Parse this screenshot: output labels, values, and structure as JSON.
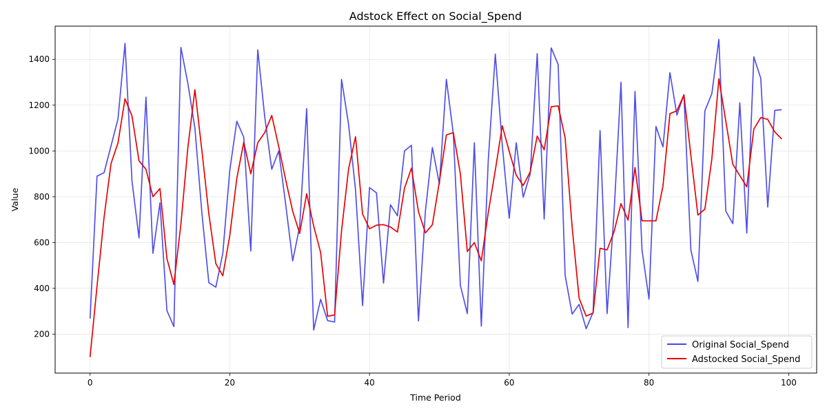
{
  "chart_data": {
    "type": "line",
    "title": "Adstock Effect on Social_Spend",
    "xlabel": "Time Period",
    "ylabel": "Value",
    "xlim": [
      -5,
      104
    ],
    "ylim": [
      30,
      1545
    ],
    "xticks": [
      0,
      20,
      40,
      60,
      80,
      100
    ],
    "yticks": [
      200,
      400,
      600,
      800,
      1000,
      1200,
      1400
    ],
    "grid": true,
    "legend_position": "lower-right",
    "x": [
      0,
      1,
      2,
      3,
      4,
      5,
      6,
      7,
      8,
      9,
      10,
      11,
      12,
      13,
      14,
      15,
      16,
      17,
      18,
      19,
      20,
      21,
      22,
      23,
      24,
      25,
      26,
      27,
      28,
      29,
      30,
      31,
      32,
      33,
      34,
      35,
      36,
      37,
      38,
      39,
      40,
      41,
      42,
      43,
      44,
      45,
      46,
      47,
      48,
      49,
      50,
      51,
      52,
      53,
      54,
      55,
      56,
      57,
      58,
      59,
      60,
      61,
      62,
      63,
      64,
      65,
      66,
      67,
      68,
      69,
      70,
      71,
      72,
      73,
      74,
      75,
      76,
      77,
      78,
      79,
      80,
      81,
      82,
      83,
      84,
      85,
      86,
      87,
      88,
      89,
      90,
      91,
      92,
      93,
      94,
      95,
      96,
      97,
      98,
      99
    ],
    "series": [
      {
        "name": "Original Social_Spend",
        "color": "#4646e8",
        "values": [
          268,
          890,
          905,
          1022,
          1140,
          1470,
          870,
          620,
          1235,
          553,
          773,
          303,
          233,
          1452,
          1295,
          1100,
          730,
          425,
          405,
          553,
          915,
          1130,
          1060,
          563,
          1442,
          1150,
          920,
          1000,
          768,
          520,
          670,
          1185,
          218,
          352,
          259,
          253,
          1313,
          1116,
          829,
          325,
          840,
          817,
          423,
          765,
          717,
          1000,
          1025,
          258,
          738,
          1015,
          855,
          1313,
          1075,
          413,
          290,
          1036,
          235,
          960,
          1423,
          1026,
          706,
          1036,
          798,
          900,
          1425,
          702,
          1450,
          1378,
          457,
          288,
          330,
          224,
          295,
          1089,
          290,
          730,
          1300,
          229,
          1260,
          567,
          353,
          1107,
          1018,
          1342,
          1157,
          1245,
          567,
          430,
          1175,
          1250,
          1487,
          737,
          683,
          1210,
          641,
          1411,
          1317,
          755,
          1177,
          1180
        ]
      },
      {
        "name": "Adstocked Social_Spend",
        "color": "#e80000",
        "values": [
          100,
          410,
          710,
          945,
          1035,
          1228,
          1153,
          957,
          920,
          800,
          836,
          530,
          417,
          680,
          1015,
          1268,
          1003,
          726,
          508,
          455,
          630,
          880,
          1038,
          900,
          1036,
          1080,
          1155,
          1020,
          874,
          737,
          640,
          813,
          673,
          557,
          278,
          284,
          652,
          922,
          1062,
          725,
          660,
          676,
          678,
          668,
          646,
          837,
          925,
          735,
          642,
          678,
          867,
          1070,
          1080,
          900,
          561,
          600,
          520,
          731,
          916,
          1110,
          998,
          894,
          849,
          909,
          1065,
          1005,
          1193,
          1197,
          1057,
          668,
          357,
          279,
          292,
          575,
          568,
          647,
          770,
          698,
          928,
          695,
          695,
          695,
          847,
          1163,
          1175,
          1245,
          980,
          720,
          746,
          965,
          1315,
          1130,
          942,
          892,
          843,
          1095,
          1146,
          1138,
          1083,
          1052
        ]
      }
    ]
  }
}
